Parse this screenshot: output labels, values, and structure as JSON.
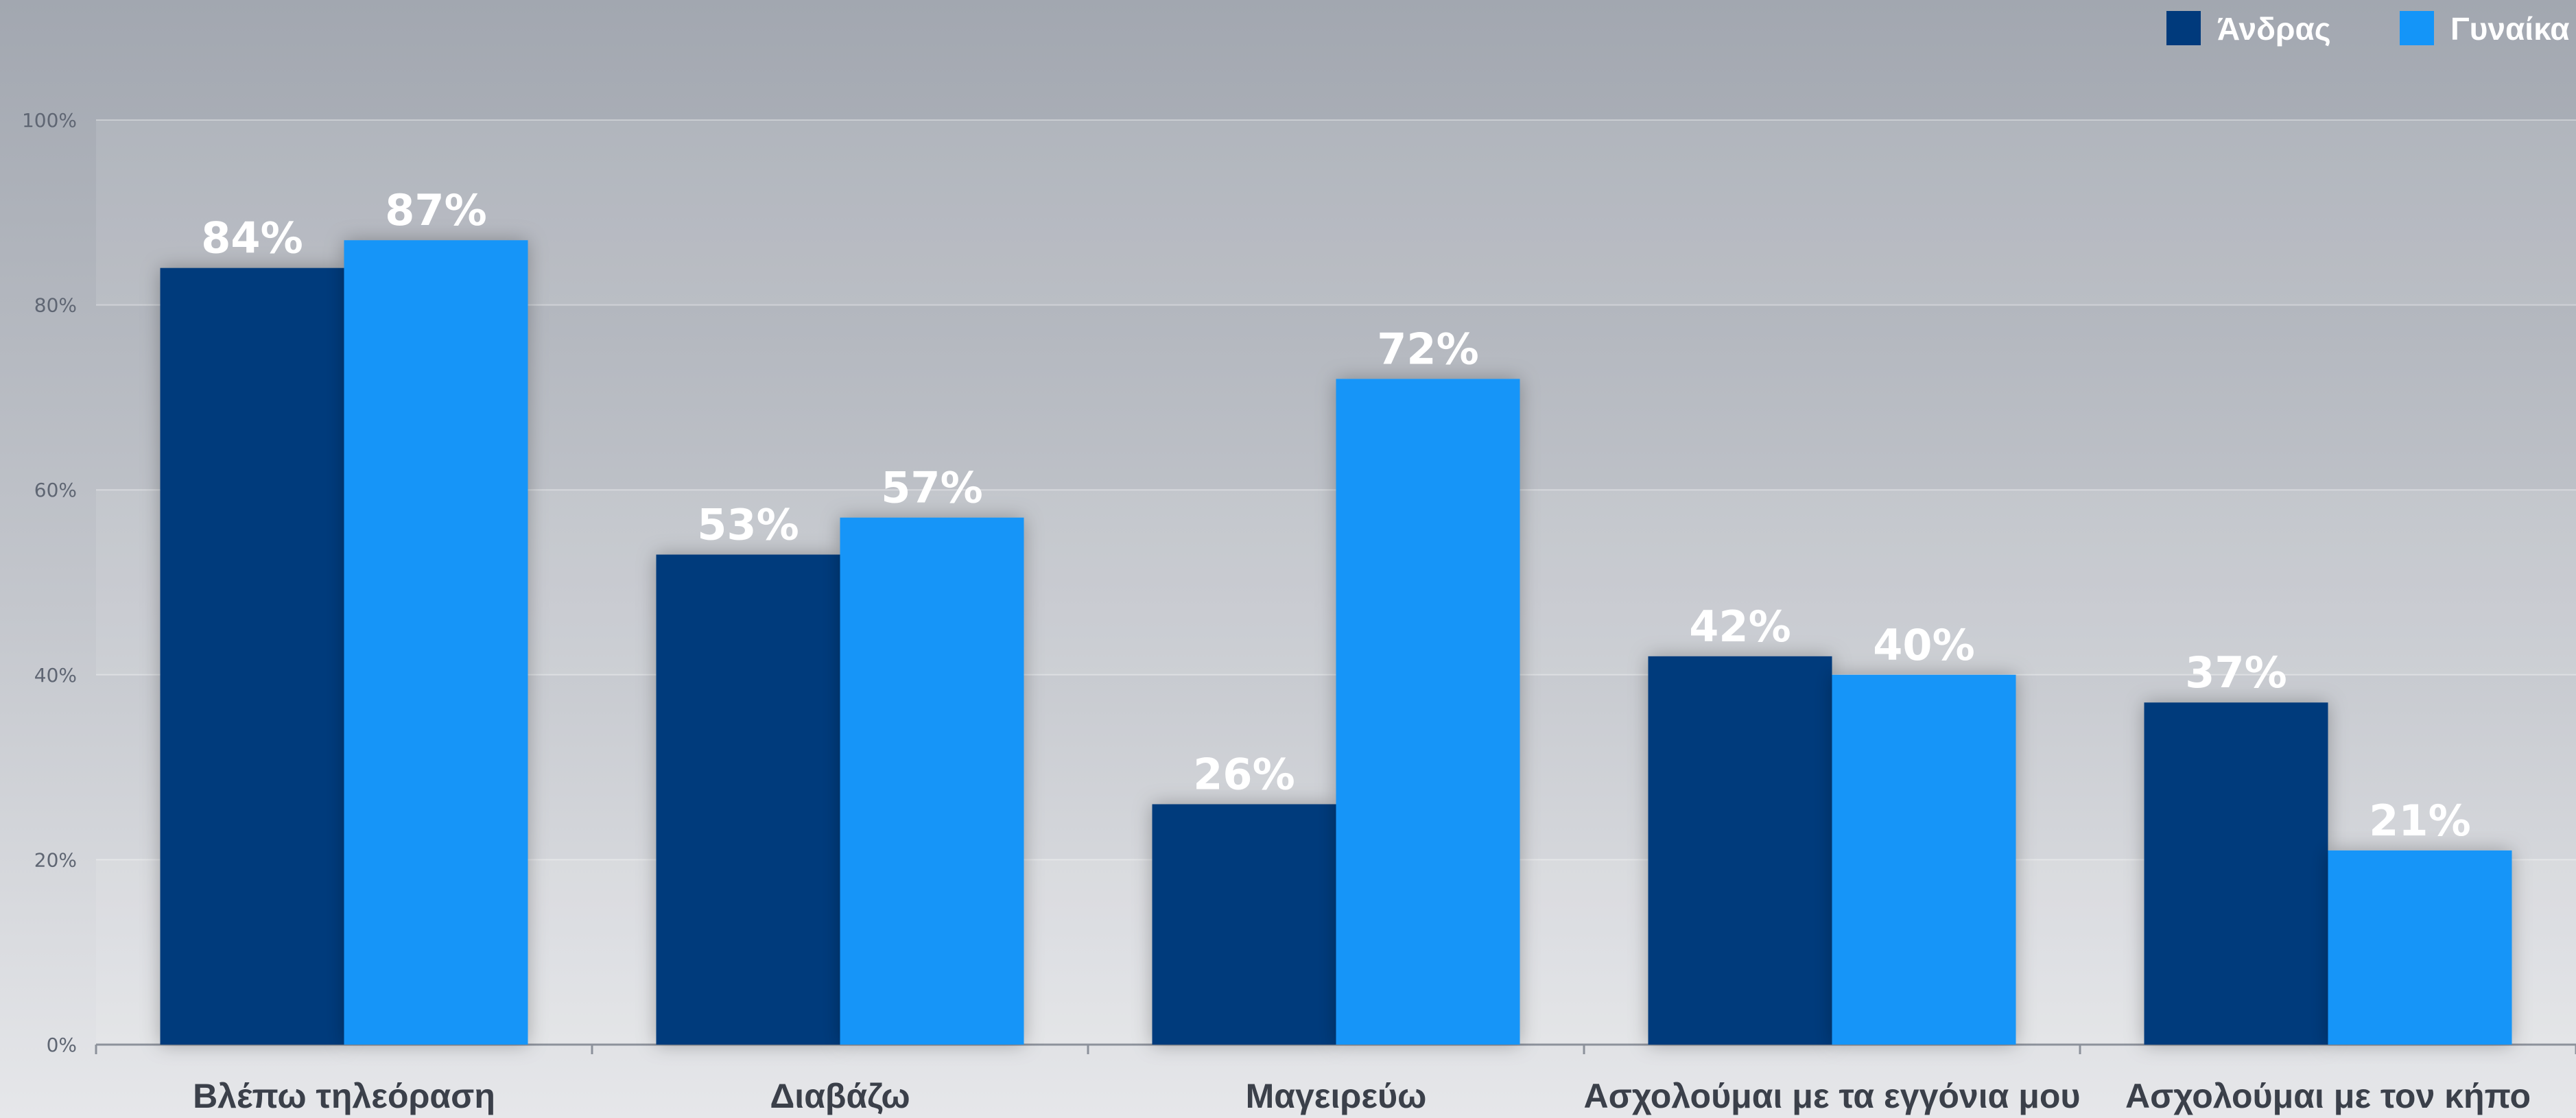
{
  "chart_data": {
    "type": "bar",
    "categories": [
      "Βλέπω τηλεόραση",
      "Διαβάζω",
      "Μαγειρεύω",
      "Ασχολούμαι με τα εγγόνια μου",
      "Ασχολούμαι με τον κήπο"
    ],
    "series": [
      {
        "name": "Άνδρας",
        "color": "#003a7c",
        "values": [
          84,
          53,
          26,
          42,
          37
        ]
      },
      {
        "name": "Γυναίκα",
        "color": "#1495f8",
        "values": [
          87,
          57,
          72,
          40,
          21
        ]
      }
    ],
    "yticks": [
      "0%",
      "20%",
      "40%",
      "60%",
      "80%",
      "100%"
    ],
    "ylim": [
      0,
      100
    ],
    "value_suffix": "%",
    "legend_position": "top-right",
    "grid": true
  }
}
